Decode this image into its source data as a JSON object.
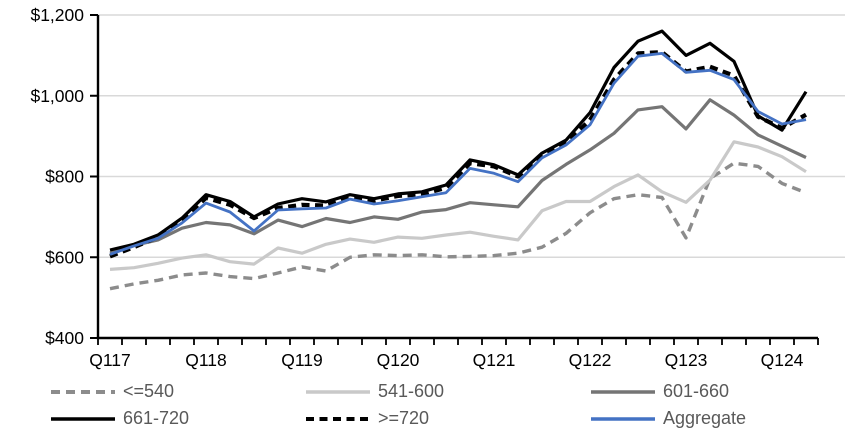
{
  "chart_data": {
    "type": "line",
    "title": "",
    "xlabel": "",
    "ylabel": "",
    "ylim": [
      400,
      1200
    ],
    "grid": "horizontal",
    "legend_position": "bottom-two-rows",
    "gridline_color": "#D9D9D9",
    "axis_color": "#000000",
    "y_tick_values": [
      400,
      600,
      800,
      1000,
      1200
    ],
    "y_tick_labels": [
      "$400",
      "$600",
      "$800",
      "$1,000",
      "$1,200"
    ],
    "x_tick_labels": [
      "Q117",
      "Q118",
      "Q119",
      "Q120",
      "Q121",
      "Q122",
      "Q123",
      "Q124"
    ],
    "x_tick_every": 4,
    "categories": [
      "2017Q1",
      "2017Q2",
      "2017Q3",
      "2017Q4",
      "2018Q1",
      "2018Q2",
      "2018Q3",
      "2018Q4",
      "2019Q1",
      "2019Q2",
      "2019Q3",
      "2019Q4",
      "2020Q1",
      "2020Q2",
      "2020Q3",
      "2020Q4",
      "2021Q1",
      "2021Q2",
      "2021Q3",
      "2021Q4",
      "2022Q1",
      "2022Q2",
      "2022Q3",
      "2022Q4",
      "2023Q1",
      "2023Q2",
      "2023Q3",
      "2023Q4",
      "2024Q1",
      "2024Q2"
    ],
    "series": [
      {
        "name": "<=540",
        "color": "#8C8C8C",
        "dash": "dashed",
        "values": [
          522,
          534,
          543,
          556,
          561,
          552,
          547,
          561,
          576,
          566,
          600,
          606,
          604,
          606,
          601,
          602,
          604,
          610,
          625,
          659,
          710,
          745,
          755,
          748,
          648,
          795,
          833,
          825,
          783,
          760
        ]
      },
      {
        "name": "541-600",
        "color": "#C9C9C9",
        "dash": "solid",
        "values": [
          570,
          574,
          585,
          598,
          606,
          589,
          583,
          623,
          610,
          632,
          645,
          637,
          650,
          647,
          655,
          662,
          652,
          643,
          715,
          738,
          738,
          775,
          804,
          762,
          736,
          791,
          886,
          873,
          849,
          812
        ]
      },
      {
        "name": "601-660",
        "color": "#757575",
        "dash": "solid",
        "values": [
          610,
          629,
          643,
          672,
          686,
          680,
          658,
          692,
          676,
          696,
          686,
          700,
          694,
          712,
          718,
          735,
          730,
          725,
          790,
          830,
          866,
          907,
          965,
          973,
          918,
          990,
          952,
          903,
          875,
          847
        ]
      },
      {
        "name": "661-720",
        "color": "#000000",
        "dash": "solid",
        "values": [
          618,
          632,
          655,
          697,
          755,
          738,
          700,
          732,
          745,
          737,
          755,
          745,
          757,
          762,
          779,
          841,
          829,
          804,
          858,
          890,
          958,
          1070,
          1135,
          1160,
          1100,
          1130,
          1085,
          950,
          915,
          1010
        ]
      },
      {
        "name": ">=720",
        "color": "#000000",
        "dash": "dashed",
        "values": [
          602,
          625,
          650,
          693,
          747,
          730,
          697,
          722,
          730,
          728,
          748,
          740,
          752,
          756,
          772,
          833,
          825,
          800,
          852,
          885,
          940,
          1040,
          1105,
          1108,
          1060,
          1072,
          1050,
          948,
          920,
          953
        ]
      },
      {
        "name": "Aggregate",
        "color": "#4472C4",
        "dash": "solid",
        "values": [
          607,
          628,
          647,
          685,
          734,
          712,
          665,
          717,
          720,
          722,
          744,
          732,
          740,
          750,
          760,
          820,
          808,
          787,
          846,
          878,
          928,
          1031,
          1098,
          1105,
          1058,
          1063,
          1040,
          961,
          930,
          941
        ]
      }
    ]
  }
}
